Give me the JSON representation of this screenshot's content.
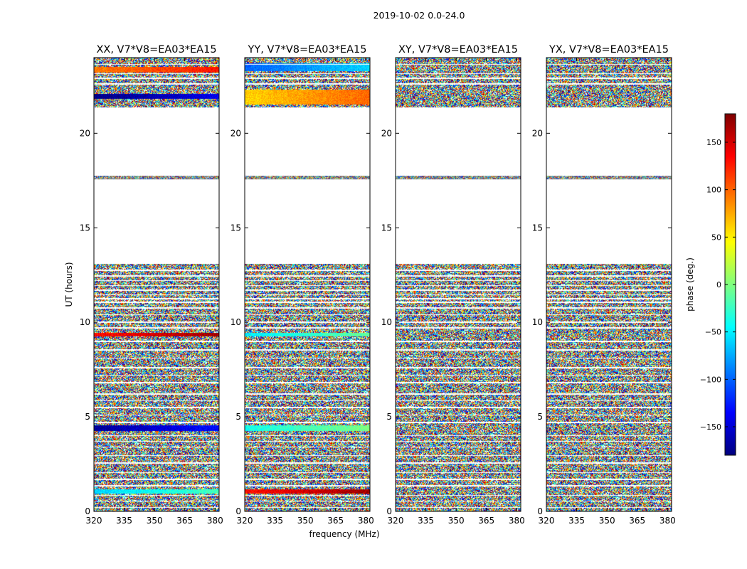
{
  "figure": {
    "suptitle": "2019-10-02 0.0-24.0",
    "xlabel": "frequency (MHz)",
    "ylabel": "UT (hours)"
  },
  "colorbar": {
    "label": "phase (deg.)",
    "range": [
      -180,
      180
    ],
    "ticks": [
      -150,
      -100,
      -50,
      0,
      50,
      100,
      150
    ],
    "tick_labels": [
      "−150",
      "−100",
      "−50",
      "0",
      "50",
      "100",
      "150"
    ],
    "colormap": "jet",
    "colormap_stops": [
      "#00007f",
      "#0000ff",
      "#007fff",
      "#00ffff",
      "#7fff7f",
      "#ffff00",
      "#ff7f00",
      "#ff0000",
      "#7f0000"
    ]
  },
  "chart_data": [
    {
      "type": "heatmap",
      "title": "XX, V7*V8=EA03*EA15",
      "x_range": [
        320,
        382
      ],
      "y_range": [
        0,
        24
      ],
      "x_ticks": [
        320,
        335,
        350,
        365,
        380
      ],
      "y_ticks": [
        0,
        5,
        10,
        15,
        20
      ],
      "value": "phase (deg.)",
      "empty_ut_hours": [
        [
          13.1,
          17.55
        ],
        [
          17.75,
          21.35
        ]
      ],
      "coherent_bands": [
        {
          "ut": [
            0.95,
            1.15
          ],
          "phase_deg": -40
        },
        {
          "ut": [
            4.25,
            4.55
          ],
          "phase_deg": -150
        },
        {
          "ut": [
            9.25,
            9.45
          ],
          "phase_deg": 150
        },
        {
          "ut": [
            21.8,
            22.1
          ],
          "phase_deg": -160
        },
        {
          "ut": [
            23.2,
            23.5
          ],
          "phase_deg": 110
        }
      ]
    },
    {
      "type": "heatmap",
      "title": "YY, V7*V8=EA03*EA15",
      "x_range": [
        320,
        382
      ],
      "y_range": [
        0,
        24
      ],
      "x_ticks": [
        320,
        335,
        350,
        365,
        380
      ],
      "y_ticks": [
        0,
        5,
        10,
        15,
        20
      ],
      "value": "phase (deg.)",
      "empty_ut_hours": [
        [
          13.1,
          17.55
        ],
        [
          17.75,
          21.35
        ]
      ],
      "coherent_bands": [
        {
          "ut": [
            0.95,
            1.15
          ],
          "phase_deg": 150
        },
        {
          "ut": [
            4.25,
            4.55
          ],
          "phase_deg": -20
        },
        {
          "ut": [
            9.25,
            9.45
          ],
          "phase_deg": -30
        },
        {
          "ut": [
            21.5,
            22.3
          ],
          "phase_deg": 80
        },
        {
          "ut": [
            23.3,
            23.7
          ],
          "phase_deg": -80
        }
      ]
    },
    {
      "type": "heatmap",
      "title": "XY, V7*V8=EA03*EA15",
      "x_range": [
        320,
        382
      ],
      "y_range": [
        0,
        24
      ],
      "x_ticks": [
        320,
        335,
        350,
        365,
        380
      ],
      "y_ticks": [
        0,
        5,
        10,
        15,
        20
      ],
      "value": "phase (deg.)",
      "empty_ut_hours": [
        [
          13.1,
          17.55
        ],
        [
          17.75,
          21.35
        ]
      ],
      "coherent_bands": []
    },
    {
      "type": "heatmap",
      "title": "YX, V7*V8=EA03*EA15",
      "x_range": [
        320,
        382
      ],
      "y_range": [
        0,
        24
      ],
      "x_ticks": [
        320,
        335,
        350,
        365,
        380
      ],
      "y_ticks": [
        0,
        5,
        10,
        15,
        20
      ],
      "value": "phase (deg.)",
      "empty_ut_hours": [
        [
          13.1,
          17.55
        ],
        [
          17.75,
          21.35
        ]
      ],
      "coherent_bands": []
    }
  ]
}
